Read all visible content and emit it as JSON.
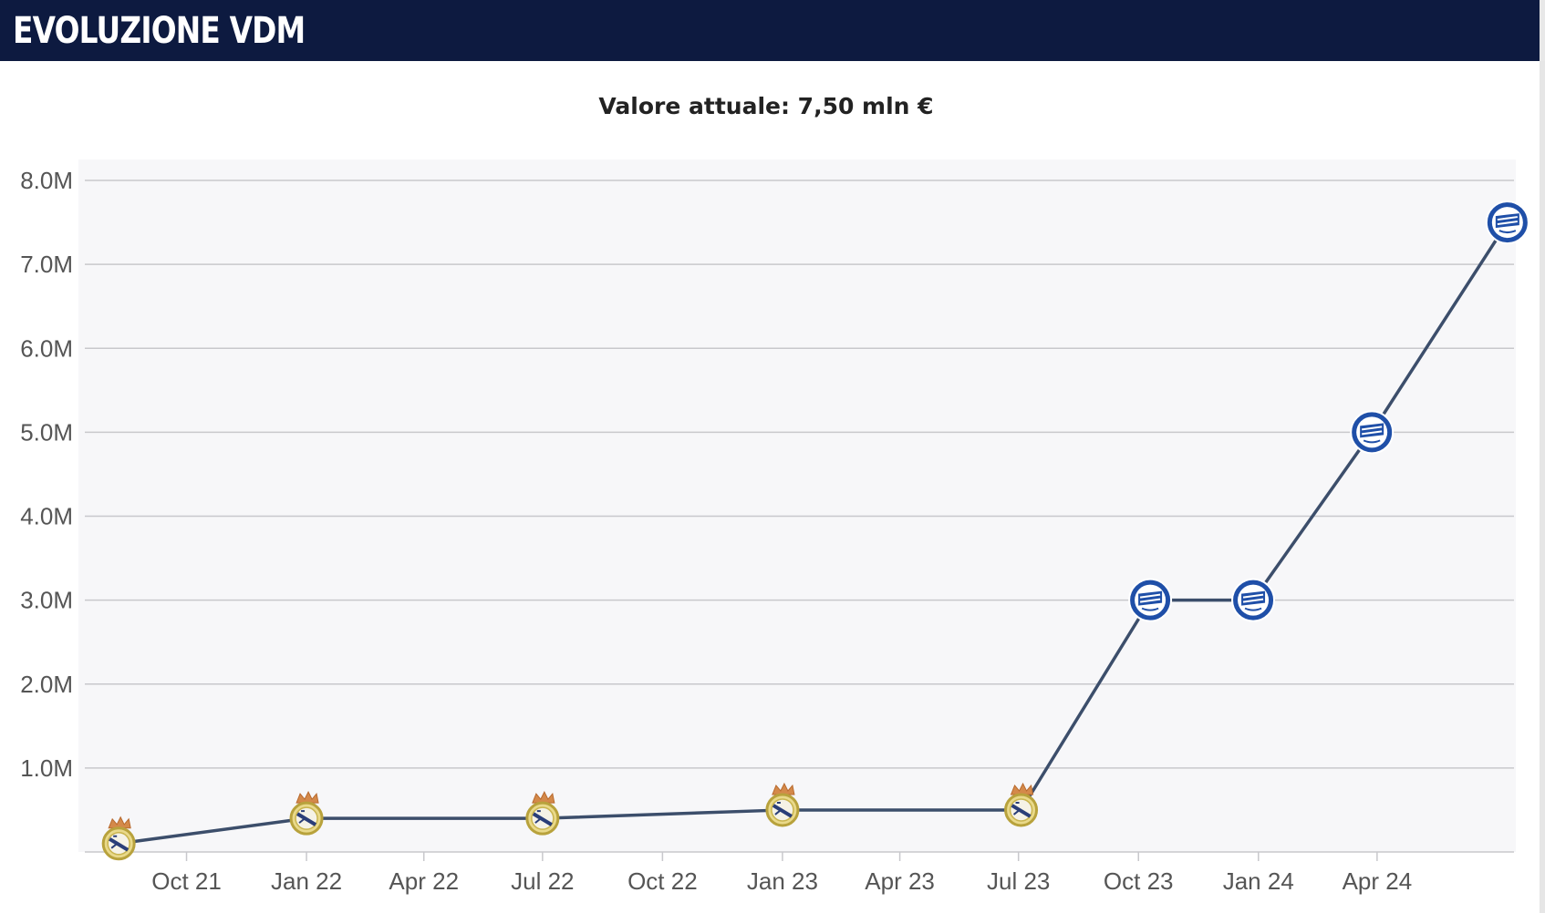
{
  "header": {
    "title": "EVOLUZIONE VDM"
  },
  "chart_data": {
    "type": "line",
    "subtitle": "Valore attuale: 7,50 mln €",
    "ylim": [
      0,
      8000000
    ],
    "yticks": [
      {
        "v": 1000000,
        "label": "1.0M"
      },
      {
        "v": 2000000,
        "label": "2.0M"
      },
      {
        "v": 3000000,
        "label": "3.0M"
      },
      {
        "v": 4000000,
        "label": "4.0M"
      },
      {
        "v": 5000000,
        "label": "5.0M"
      },
      {
        "v": 6000000,
        "label": "6.0M"
      },
      {
        "v": 7000000,
        "label": "7.0M"
      },
      {
        "v": 8000000,
        "label": "8.0M"
      }
    ],
    "xlim": [
      "2021-07-15",
      "2024-07-15"
    ],
    "xticks": [
      {
        "date": "2021-10-01",
        "label": "Oct 21"
      },
      {
        "date": "2022-01-01",
        "label": "Jan 22"
      },
      {
        "date": "2022-04-01",
        "label": "Apr 22"
      },
      {
        "date": "2022-07-01",
        "label": "Jul 22"
      },
      {
        "date": "2022-10-01",
        "label": "Oct 22"
      },
      {
        "date": "2023-01-01",
        "label": "Jan 23"
      },
      {
        "date": "2023-04-01",
        "label": "Apr 23"
      },
      {
        "date": "2023-07-01",
        "label": "Jul 23"
      },
      {
        "date": "2023-10-01",
        "label": "Oct 23"
      },
      {
        "date": "2024-01-01",
        "label": "Jan 24"
      },
      {
        "date": "2024-04-01",
        "label": "Apr 24"
      }
    ],
    "grid": true,
    "series": [
      {
        "line_color": "#3c4e6b",
        "points": [
          {
            "date": "2021-08-10",
            "value": 100000,
            "club": "real-madrid-crest-icon"
          },
          {
            "date": "2022-01-01",
            "value": 400000,
            "club": "real-madrid-crest-icon"
          },
          {
            "date": "2022-07-01",
            "value": 400000,
            "club": "real-madrid-crest-icon"
          },
          {
            "date": "2023-01-01",
            "value": 500000,
            "club": "real-madrid-crest-icon"
          },
          {
            "date": "2023-07-03",
            "value": 500000,
            "club": "real-madrid-crest-icon"
          },
          {
            "date": "2023-10-10",
            "value": 3000000,
            "club": "alaves-crest-icon"
          },
          {
            "date": "2023-12-28",
            "value": 3000000,
            "club": "alaves-crest-icon"
          },
          {
            "date": "2024-03-28",
            "value": 5000000,
            "club": "alaves-crest-icon"
          },
          {
            "date": "2024-07-10",
            "value": 7500000,
            "club": "alaves-crest-icon"
          }
        ]
      }
    ]
  }
}
